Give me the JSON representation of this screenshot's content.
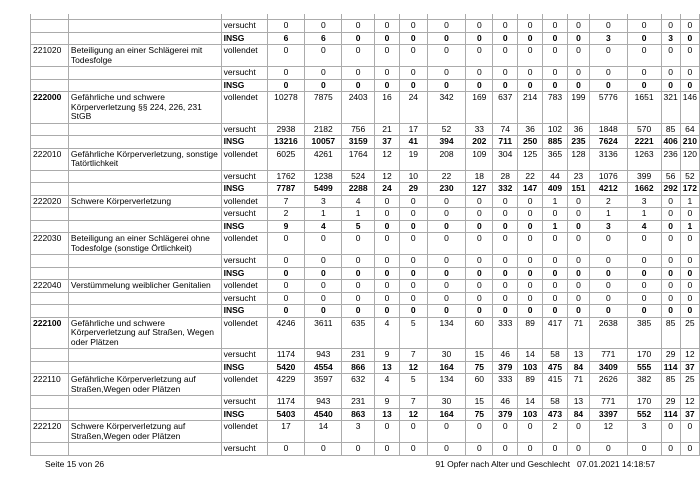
{
  "footer": {
    "left": "Seite 15 von 26",
    "right_title": "91 Opfer nach Alter und Geschlecht",
    "right_datetime": "07.01.2021 14:18:57"
  },
  "colors": {
    "grid": "#ababab",
    "text": "#000000",
    "background": "#ffffff"
  },
  "table": {
    "status_labels": [
      "vollendet",
      "versucht",
      "INSG"
    ],
    "rows": [
      {
        "spacer": true
      },
      {
        "code": "",
        "description_lines": [],
        "status": "versucht",
        "bold": false,
        "values": [
          0,
          0,
          0,
          0,
          0,
          0,
          0,
          0,
          0,
          0,
          0,
          0,
          0,
          0,
          0
        ]
      },
      {
        "code": "",
        "description_lines": [],
        "status": "INSG",
        "bold": true,
        "values": [
          6,
          6,
          0,
          0,
          0,
          0,
          0,
          0,
          0,
          0,
          0,
          3,
          0,
          3,
          0
        ]
      },
      {
        "code": "221020",
        "code_bold": false,
        "description_lines": [
          "Beteiligung an einer Schlägerei mit",
          "Todesfolge"
        ],
        "status": "vollendet",
        "bold": false,
        "values": [
          0,
          0,
          0,
          0,
          0,
          0,
          0,
          0,
          0,
          0,
          0,
          0,
          0,
          0,
          0
        ]
      },
      {
        "code": "",
        "description_lines": [],
        "status": "versucht",
        "bold": false,
        "values": [
          0,
          0,
          0,
          0,
          0,
          0,
          0,
          0,
          0,
          0,
          0,
          0,
          0,
          0,
          0
        ]
      },
      {
        "code": "",
        "description_lines": [],
        "status": "INSG",
        "bold": true,
        "values": [
          0,
          0,
          0,
          0,
          0,
          0,
          0,
          0,
          0,
          0,
          0,
          0,
          0,
          0,
          0
        ]
      },
      {
        "code": "222000",
        "code_bold": true,
        "description_lines": [
          "Gefährliche und schwere",
          "Körperverletzung §§ 224, 226, 231",
          "StGB"
        ],
        "status": "vollendet",
        "bold": false,
        "values": [
          10278,
          7875,
          2403,
          16,
          24,
          342,
          169,
          637,
          214,
          783,
          199,
          5776,
          1651,
          321,
          146
        ]
      },
      {
        "code": "",
        "description_lines": [],
        "status": "versucht",
        "bold": false,
        "values": [
          2938,
          2182,
          756,
          21,
          17,
          52,
          33,
          74,
          36,
          102,
          36,
          1848,
          570,
          85,
          64
        ]
      },
      {
        "code": "",
        "description_lines": [],
        "status": "INSG",
        "bold": true,
        "values": [
          13216,
          10057,
          3159,
          37,
          41,
          394,
          202,
          711,
          250,
          885,
          235,
          7624,
          2221,
          406,
          210
        ]
      },
      {
        "code": "222010",
        "code_bold": false,
        "description_lines": [
          "Gefährliche Körperverletzung, sonstige",
          "Tatörtlichkeit"
        ],
        "status": "vollendet",
        "bold": false,
        "values": [
          6025,
          4261,
          1764,
          12,
          19,
          208,
          109,
          304,
          125,
          365,
          128,
          3136,
          1263,
          236,
          120
        ]
      },
      {
        "code": "",
        "description_lines": [],
        "status": "versucht",
        "bold": false,
        "values": [
          1762,
          1238,
          524,
          12,
          10,
          22,
          18,
          28,
          22,
          44,
          23,
          1076,
          399,
          56,
          52
        ]
      },
      {
        "code": "",
        "description_lines": [],
        "status": "INSG",
        "bold": true,
        "values": [
          7787,
          5499,
          2288,
          24,
          29,
          230,
          127,
          332,
          147,
          409,
          151,
          4212,
          1662,
          292,
          172
        ]
      },
      {
        "code": "222020",
        "code_bold": false,
        "description_lines": [
          "Schwere Körperverletzung"
        ],
        "status": "vollendet",
        "bold": false,
        "values": [
          7,
          3,
          4,
          0,
          0,
          0,
          0,
          0,
          0,
          1,
          0,
          2,
          3,
          0,
          1
        ]
      },
      {
        "code": "",
        "description_lines": [],
        "status": "versucht",
        "bold": false,
        "values": [
          2,
          1,
          1,
          0,
          0,
          0,
          0,
          0,
          0,
          0,
          0,
          1,
          1,
          0,
          0
        ]
      },
      {
        "code": "",
        "description_lines": [],
        "status": "INSG",
        "bold": true,
        "values": [
          9,
          4,
          5,
          0,
          0,
          0,
          0,
          0,
          0,
          1,
          0,
          3,
          4,
          0,
          1
        ]
      },
      {
        "code": "222030",
        "code_bold": false,
        "description_lines": [
          "Beteiligung an einer Schlägerei ohne",
          "Todesfolge (sonstige Örtlichkeit)"
        ],
        "status": "vollendet",
        "bold": false,
        "values": [
          0,
          0,
          0,
          0,
          0,
          0,
          0,
          0,
          0,
          0,
          0,
          0,
          0,
          0,
          0
        ]
      },
      {
        "code": "",
        "description_lines": [],
        "status": "versucht",
        "bold": false,
        "values": [
          0,
          0,
          0,
          0,
          0,
          0,
          0,
          0,
          0,
          0,
          0,
          0,
          0,
          0,
          0
        ]
      },
      {
        "code": "",
        "description_lines": [],
        "status": "INSG",
        "bold": true,
        "values": [
          0,
          0,
          0,
          0,
          0,
          0,
          0,
          0,
          0,
          0,
          0,
          0,
          0,
          0,
          0
        ]
      },
      {
        "code": "222040",
        "code_bold": false,
        "description_lines": [
          "Verstümmelung weiblicher Genitalien"
        ],
        "status": "vollendet",
        "bold": false,
        "values": [
          0,
          0,
          0,
          0,
          0,
          0,
          0,
          0,
          0,
          0,
          0,
          0,
          0,
          0,
          0
        ]
      },
      {
        "code": "",
        "description_lines": [],
        "status": "versucht",
        "bold": false,
        "values": [
          0,
          0,
          0,
          0,
          0,
          0,
          0,
          0,
          0,
          0,
          0,
          0,
          0,
          0,
          0
        ]
      },
      {
        "code": "",
        "description_lines": [],
        "status": "INSG",
        "bold": true,
        "values": [
          0,
          0,
          0,
          0,
          0,
          0,
          0,
          0,
          0,
          0,
          0,
          0,
          0,
          0,
          0
        ]
      },
      {
        "code": "222100",
        "code_bold": true,
        "description_lines": [
          "Gefährliche und schwere",
          "Körperverletzung auf Straßen, Wegen",
          "oder Plätzen"
        ],
        "status": "vollendet",
        "bold": false,
        "values": [
          4246,
          3611,
          635,
          4,
          5,
          134,
          60,
          333,
          89,
          417,
          71,
          2638,
          385,
          85,
          25
        ]
      },
      {
        "code": "",
        "description_lines": [],
        "status": "versucht",
        "bold": false,
        "values": [
          1174,
          943,
          231,
          9,
          7,
          30,
          15,
          46,
          14,
          58,
          13,
          771,
          170,
          29,
          12
        ]
      },
      {
        "code": "",
        "description_lines": [],
        "status": "INSG",
        "bold": true,
        "values": [
          5420,
          4554,
          866,
          13,
          12,
          164,
          75,
          379,
          103,
          475,
          84,
          3409,
          555,
          114,
          37
        ]
      },
      {
        "code": "222110",
        "code_bold": false,
        "description_lines": [
          "Gefährliche Körperverletzung auf",
          "Straßen,Wegen oder Plätzen"
        ],
        "status": "vollendet",
        "bold": false,
        "values": [
          4229,
          3597,
          632,
          4,
          5,
          134,
          60,
          333,
          89,
          415,
          71,
          2626,
          382,
          85,
          25
        ]
      },
      {
        "code": "",
        "description_lines": [],
        "status": "versucht",
        "bold": false,
        "values": [
          1174,
          943,
          231,
          9,
          7,
          30,
          15,
          46,
          14,
          58,
          13,
          771,
          170,
          29,
          12
        ]
      },
      {
        "code": "",
        "description_lines": [],
        "status": "INSG",
        "bold": true,
        "values": [
          5403,
          4540,
          863,
          13,
          12,
          164,
          75,
          379,
          103,
          473,
          84,
          3397,
          552,
          114,
          37
        ]
      },
      {
        "code": "222120",
        "code_bold": false,
        "description_lines": [
          "Schwere Körperverletzung auf",
          "Straßen,Wegen oder Plätzen"
        ],
        "status": "vollendet",
        "bold": false,
        "values": [
          17,
          14,
          3,
          0,
          0,
          0,
          0,
          0,
          0,
          2,
          0,
          12,
          3,
          0,
          0
        ]
      },
      {
        "code": "",
        "description_lines": [],
        "status": "versucht",
        "bold": false,
        "values": [
          0,
          0,
          0,
          0,
          0,
          0,
          0,
          0,
          0,
          0,
          0,
          0,
          0,
          0,
          0
        ]
      }
    ]
  }
}
